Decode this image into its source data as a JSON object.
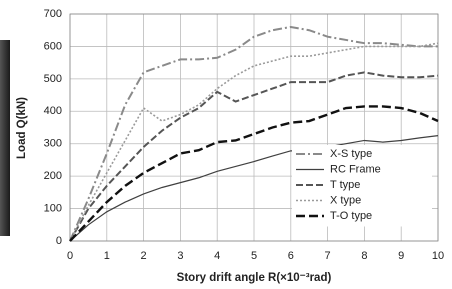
{
  "chart_data": {
    "type": "line",
    "x_label": "Story drift angle R(×10⁻³rad)",
    "y_label": "Load Q(kN)",
    "x": [
      0,
      0.5,
      1,
      1.5,
      2,
      2.5,
      3,
      3.5,
      4,
      4.5,
      5,
      5.5,
      6,
      6.5,
      7,
      7.5,
      8,
      8.5,
      9,
      9.5,
      10
    ],
    "xlim": [
      0,
      10
    ],
    "xticks": [
      0,
      1,
      2,
      3,
      4,
      5,
      6,
      7,
      8,
      9,
      10
    ],
    "ylim": [
      0,
      700
    ],
    "yticks": [
      0,
      100,
      200,
      300,
      400,
      500,
      600,
      700
    ],
    "grid": true,
    "legend": "lower right",
    "series": [
      {
        "name": "X-S type",
        "color": "#8a8a8a",
        "dash": "9 3 2 3",
        "width": 2,
        "values": [
          0,
          130,
          270,
          420,
          520,
          540,
          560,
          560,
          565,
          590,
          630,
          650,
          660,
          650,
          630,
          620,
          610,
          610,
          605,
          600,
          600
        ]
      },
      {
        "name": "RC Frame",
        "color": "#404040",
        "dash": "",
        "width": 1.2,
        "values": [
          0,
          50,
          90,
          120,
          145,
          165,
          180,
          195,
          215,
          230,
          245,
          262,
          278,
          278,
          290,
          300,
          310,
          305,
          310,
          318,
          325
        ]
      },
      {
        "name": "T type",
        "color": "#555555",
        "dash": "7 3",
        "width": 2,
        "values": [
          0,
          100,
          170,
          230,
          290,
          340,
          380,
          410,
          460,
          430,
          450,
          470,
          490,
          490,
          490,
          510,
          520,
          510,
          505,
          505,
          510
        ]
      },
      {
        "name": "X type",
        "color": "#9a9a9a",
        "dash": "2 2",
        "width": 1.6,
        "values": [
          0,
          110,
          210,
          310,
          410,
          370,
          390,
          420,
          470,
          510,
          540,
          555,
          570,
          570,
          580,
          590,
          600,
          600,
          600,
          600,
          610
        ]
      },
      {
        "name": "T-O type",
        "color": "#111111",
        "dash": "9 4",
        "width": 2.4,
        "values": [
          0,
          60,
          120,
          170,
          210,
          240,
          270,
          280,
          305,
          310,
          330,
          350,
          365,
          370,
          390,
          410,
          415,
          415,
          410,
          395,
          370
        ]
      }
    ]
  }
}
